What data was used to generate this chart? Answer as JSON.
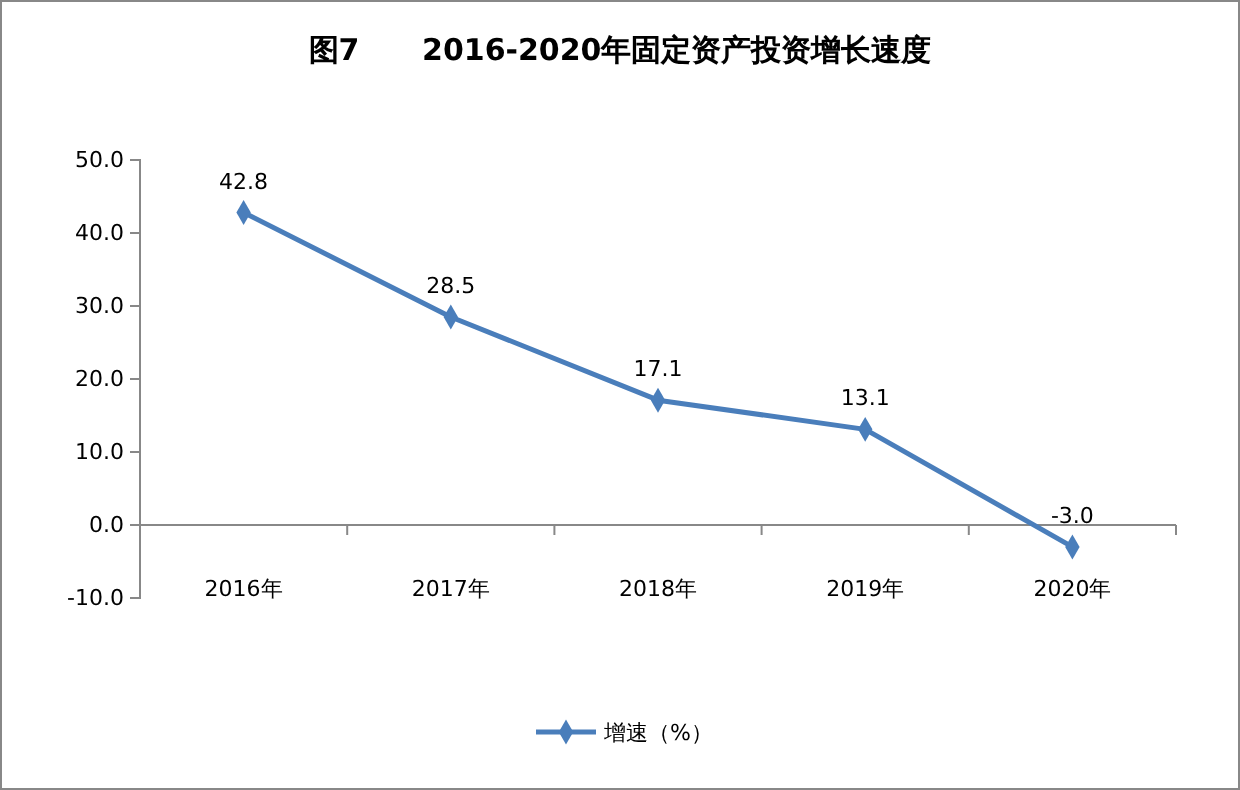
{
  "chart_data": {
    "type": "line",
    "title": "图7      2016-2020年固定资产投资增长速度",
    "categories": [
      "2016年",
      "2017年",
      "2018年",
      "2019年",
      "2020年"
    ],
    "series": [
      {
        "name": "增速（%）",
        "color": "#4a7ebb",
        "values": [
          42.8,
          28.5,
          17.1,
          13.1,
          -3.0
        ],
        "value_labels": [
          "42.8",
          "28.5",
          "17.1",
          "13.1",
          "-3.0"
        ]
      }
    ],
    "ylim": [
      -10,
      50
    ],
    "yticks": [
      {
        "value": -10,
        "label": "-10.0"
      },
      {
        "value": 0,
        "label": "0.0"
      },
      {
        "value": 10,
        "label": "10.0"
      },
      {
        "value": 20,
        "label": "20.0"
      },
      {
        "value": 30,
        "label": "30.0"
      },
      {
        "value": 40,
        "label": "40.0"
      },
      {
        "value": 50,
        "label": "50.0"
      }
    ],
    "grid": false,
    "legend": "bottom",
    "marker": "diamond",
    "line_style": "solid"
  }
}
